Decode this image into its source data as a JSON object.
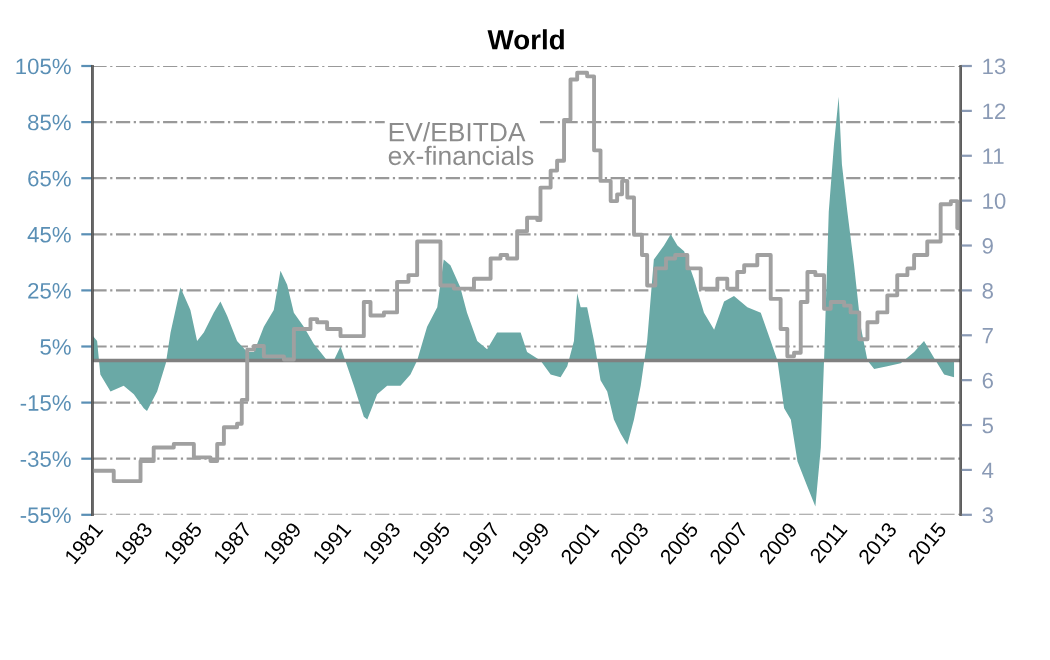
{
  "chart_data": {
    "type": "area",
    "title": "World",
    "xlim": [
      1981,
      2016
    ],
    "xticks": [
      1981,
      1983,
      1985,
      1987,
      1989,
      1991,
      1993,
      1995,
      1997,
      1999,
      2001,
      2003,
      2005,
      2007,
      2009,
      2011,
      2013,
      2015
    ],
    "ylim": [
      -55,
      105
    ],
    "yticks": [
      {
        "value": -55,
        "label": "-55%"
      },
      {
        "value": -35,
        "label": "-35%"
      },
      {
        "value": -15,
        "label": "-15%"
      },
      {
        "value": 5,
        "label": "5%"
      },
      {
        "value": 25,
        "label": "25%"
      },
      {
        "value": 45,
        "label": "45%"
      },
      {
        "value": 65,
        "label": "65%"
      },
      {
        "value": 85,
        "label": "85%"
      },
      {
        "value": 105,
        "label": "105%"
      }
    ],
    "y2lim": [
      3,
      13
    ],
    "y2ticks": [
      3,
      4,
      5,
      6,
      7,
      8,
      9,
      10,
      11,
      12,
      13
    ],
    "grid": "y",
    "legend": false,
    "ref_lines": [
      {
        "axis": "y",
        "value": 0,
        "color": "#808080"
      }
    ],
    "series": [
      {
        "color": "#6aa9a6",
        "x": [
          1981.0,
          1981.19,
          1981.32,
          1981.73,
          1982.26,
          1982.67,
          1983.07,
          1983.2,
          1983.61,
          1983.96,
          1984.15,
          1984.55,
          1984.95,
          1985.22,
          1985.49,
          1985.89,
          1986.16,
          1986.43,
          1986.83,
          1987.24,
          1987.51,
          1987.91,
          1988.31,
          1988.58,
          1988.85,
          1989.12,
          1989.52,
          1989.92,
          1990.19,
          1990.46,
          1990.73,
          1991.0,
          1991.27,
          1991.54,
          1991.94,
          1992.08,
          1992.48,
          1992.88,
          1993.42,
          1993.82,
          1994.09,
          1994.49,
          1994.9,
          1995.16,
          1995.43,
          1995.83,
          1996.1,
          1996.51,
          1996.91,
          1997.31,
          1997.72,
          1998.26,
          1998.52,
          1999.06,
          1999.47,
          1999.87,
          2000.14,
          2000.41,
          2000.54,
          2000.68,
          2000.94,
          2001.22,
          2001.48,
          2001.75,
          2002.02,
          2002.29,
          2002.56,
          2002.83,
          2003.1,
          2003.36,
          2003.63,
          2004.04,
          2004.31,
          2004.58,
          2004.85,
          2005.25,
          2005.65,
          2006.06,
          2006.46,
          2006.86,
          2007.4,
          2007.94,
          2008.34,
          2008.61,
          2008.88,
          2009.15,
          2009.42,
          2009.82,
          2010.14,
          2010.36,
          2010.49,
          2010.68,
          2010.89,
          2011.08,
          2011.21,
          2011.43,
          2011.7,
          2011.97,
          2012.24,
          2012.51,
          2013.04,
          2013.58,
          2014.12,
          2014.52,
          2014.92,
          2015.33,
          2015.73
        ],
        "values": [
          9,
          7,
          -5,
          -11,
          -9,
          -12,
          -17,
          -18,
          -11,
          -1,
          10,
          26,
          18,
          7,
          10,
          17,
          21,
          16,
          7,
          3,
          3,
          12,
          18,
          32,
          27,
          17,
          12,
          6,
          3,
          0,
          0,
          5,
          -2,
          -9,
          -20,
          -21,
          -12,
          -9,
          -9,
          -5,
          0,
          12,
          19,
          36,
          34,
          26,
          17,
          7,
          4,
          10,
          10,
          10,
          3,
          0,
          -5,
          -6,
          -2,
          7,
          24,
          19,
          19,
          7,
          -7,
          -11,
          -21,
          -26,
          -30,
          -21,
          -9,
          7,
          36,
          41,
          45,
          41,
          39,
          29,
          17,
          11,
          21,
          23,
          19,
          17,
          7,
          0,
          -17,
          -21,
          -36,
          -45,
          -52,
          -31,
          0,
          53,
          77,
          94,
          70,
          53,
          34,
          12,
          0,
          -3,
          -2,
          -1,
          3,
          7,
          1,
          -5,
          -6
        ]
      },
      {
        "type": "step",
        "name": "EV/EBITDA\nex-financials",
        "axis": "y2",
        "color": "#a0a0a0",
        "x": [
          1981.0,
          1981.59,
          1981.86,
          1982.8,
          1982.94,
          1983.47,
          1984.28,
          1984.82,
          1985.09,
          1985.76,
          1986.03,
          1986.3,
          1986.83,
          1987.02,
          1987.24,
          1987.51,
          1987.91,
          1988.72,
          1989.12,
          1989.79,
          1990.06,
          1990.46,
          1991.0,
          1991.4,
          1991.94,
          1992.21,
          1992.75,
          1993.28,
          1993.74,
          1994.09,
          1994.63,
          1995.03,
          1995.57,
          1996.38,
          1997.05,
          1997.45,
          1997.72,
          1998.12,
          1998.52,
          1998.93,
          1999.06,
          1999.47,
          1999.73,
          2000.01,
          2000.27,
          2000.54,
          2000.94,
          2001.22,
          2001.48,
          2001.89,
          2002.15,
          2002.35,
          2002.56,
          2002.83,
          2003.15,
          2003.36,
          2003.69,
          2004.12,
          2004.49,
          2004.98,
          2005.52,
          2006.19,
          2006.59,
          2006.99,
          2007.27,
          2007.8,
          2008.07,
          2008.34,
          2008.74,
          2009.01,
          2009.28,
          2009.55,
          2009.82,
          2010.14,
          2010.49,
          2010.76,
          2011.3,
          2011.56,
          2011.91,
          2012.24,
          2012.64,
          2013.04,
          2013.44,
          2013.85,
          2014.12,
          2014.65,
          2015.19,
          2015.6,
          2015.86,
          2016.0
        ],
        "values": [
          3.98,
          3.98,
          3.75,
          3.75,
          4.2,
          4.5,
          4.58,
          4.58,
          4.28,
          4.2,
          4.58,
          4.95,
          5.03,
          5.56,
          6.68,
          6.76,
          6.53,
          6.46,
          7.14,
          7.36,
          7.29,
          7.14,
          6.98,
          6.98,
          7.74,
          7.44,
          7.51,
          8.19,
          8.34,
          9.09,
          9.09,
          8.11,
          8.04,
          8.26,
          8.71,
          8.79,
          8.71,
          9.32,
          9.62,
          9.57,
          10.29,
          10.67,
          10.89,
          11.8,
          12.7,
          12.85,
          12.77,
          11.12,
          10.44,
          9.99,
          10.14,
          10.44,
          10.07,
          9.24,
          8.79,
          8.11,
          8.49,
          8.71,
          8.79,
          8.49,
          8.04,
          8.26,
          8.04,
          8.41,
          8.56,
          8.79,
          8.79,
          7.81,
          7.14,
          6.53,
          6.61,
          7.74,
          8.41,
          8.34,
          7.59,
          7.74,
          7.66,
          7.51,
          6.91,
          7.29,
          7.51,
          7.89,
          8.34,
          8.49,
          8.79,
          9.09,
          9.92,
          9.99,
          9.39,
          9.36
        ]
      }
    ]
  }
}
